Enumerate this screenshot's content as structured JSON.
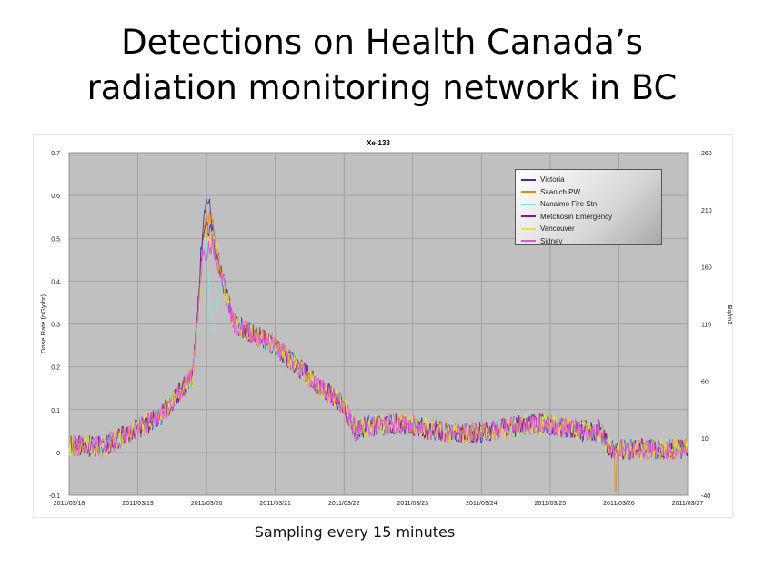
{
  "title_line1": "Detections on Health Canada’s",
  "title_line2": "radiation monitoring network in BC",
  "caption": "Sampling every 15 minutes",
  "chart_data": {
    "type": "line",
    "title": "Xe-133",
    "ylabel": "Dose Rate (nGy/hr)",
    "y2label": "Bq/m3",
    "ylim": [
      -0.1,
      0.7
    ],
    "y2lim": [
      -40,
      260
    ],
    "yticks": [
      "-0.1",
      "0",
      "0.1",
      "0.2",
      "0.3",
      "0.4",
      "0.5",
      "0.6",
      "0.7"
    ],
    "y2ticks": [
      "-40",
      "10",
      "60",
      "110",
      "160",
      "210",
      "260"
    ],
    "xticks": [
      "2011/03/18",
      "2011/03/19",
      "2011/03/20",
      "2011/03/21",
      "2011/03/22",
      "2011/03/23",
      "2011/03/24",
      "2011/03/25",
      "2011/03/26",
      "2011/03/27"
    ],
    "grid": true,
    "legend_position": "top-right",
    "series": [
      {
        "name": "Victoria",
        "color": "#3a2fa0",
        "peak": 0.59,
        "peak_day": 2.0
      },
      {
        "name": "Saanich PW",
        "color": "#e08a1e",
        "peak": 0.54,
        "peak_day": 2.05
      },
      {
        "name": "Nanaimo Fire Stn",
        "color": "#7ee0e6",
        "peak": 0.27,
        "peak_day": 2.1
      },
      {
        "name": "Metchosin Emergency",
        "color": "#8a1c6a",
        "peak": 0.52,
        "peak_day": 2.0
      },
      {
        "name": "Vancouver",
        "color": "#e8e040",
        "peak": 0.5,
        "peak_day": 2.05
      },
      {
        "name": "Sidney",
        "color": "#e850e0",
        "peak": 0.47,
        "peak_day": 2.0
      }
    ]
  }
}
